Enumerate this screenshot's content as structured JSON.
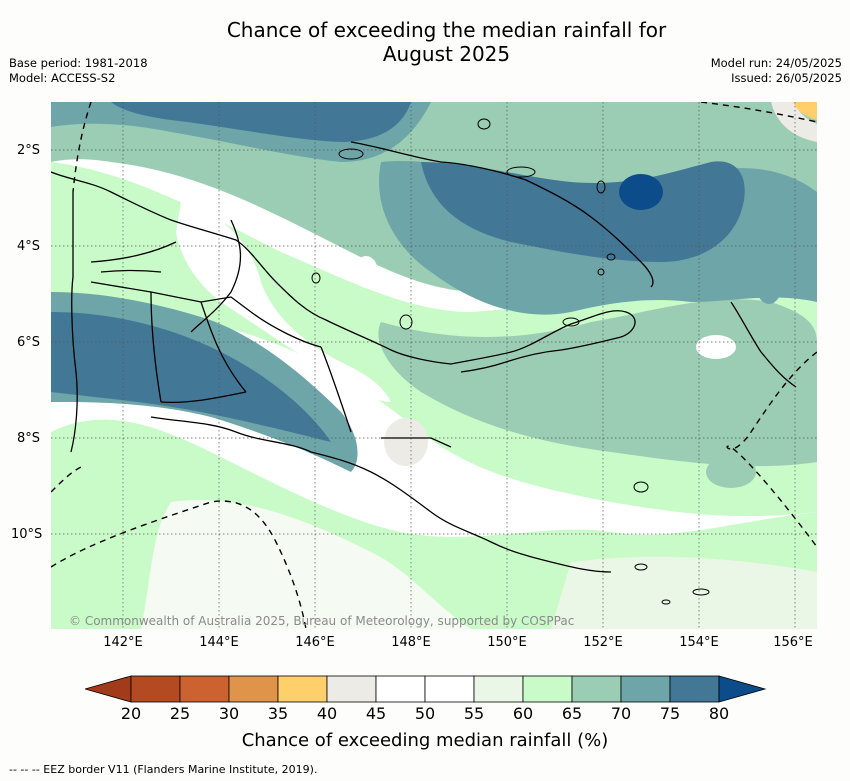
{
  "title_line1": "Chance of exceeding the median rainfall for",
  "title_line2": "August 2025",
  "meta_left": {
    "base_period": "Base period: 1981-2018",
    "model": "Model: ACCESS-S2"
  },
  "meta_right": {
    "model_run": "Model run: 24/05/2025",
    "issued": "Issued: 26/05/2025"
  },
  "y_ticks": [
    "2°S",
    "4°S",
    "6°S",
    "8°S",
    "10°S"
  ],
  "x_ticks": [
    "142°E",
    "144°E",
    "146°E",
    "148°E",
    "150°E",
    "152°E",
    "154°E",
    "156°E"
  ],
  "copyright": "© Commonwealth of Australia 2025, Bureau of Meteorology, supported by COSPPac",
  "colorbar": {
    "labels": [
      "20",
      "25",
      "30",
      "35",
      "40",
      "45",
      "50",
      "55",
      "60",
      "65",
      "70",
      "75",
      "80"
    ],
    "colors": [
      "#a13b1a",
      "#b44a22",
      "#cc6230",
      "#e0944a",
      "#ffcf6b",
      "#ecebe6",
      "#ffffff",
      "#ffffff",
      "#eaf7e6",
      "#c9fbc8",
      "#9bcdb4",
      "#6ea5a8",
      "#427896",
      "#0c4c8a"
    ],
    "title": "Chance of exceeding median rainfall (%)"
  },
  "footer": "--  --  -- EEZ border V11 (Flanders Marine Institute, 2019)."
}
